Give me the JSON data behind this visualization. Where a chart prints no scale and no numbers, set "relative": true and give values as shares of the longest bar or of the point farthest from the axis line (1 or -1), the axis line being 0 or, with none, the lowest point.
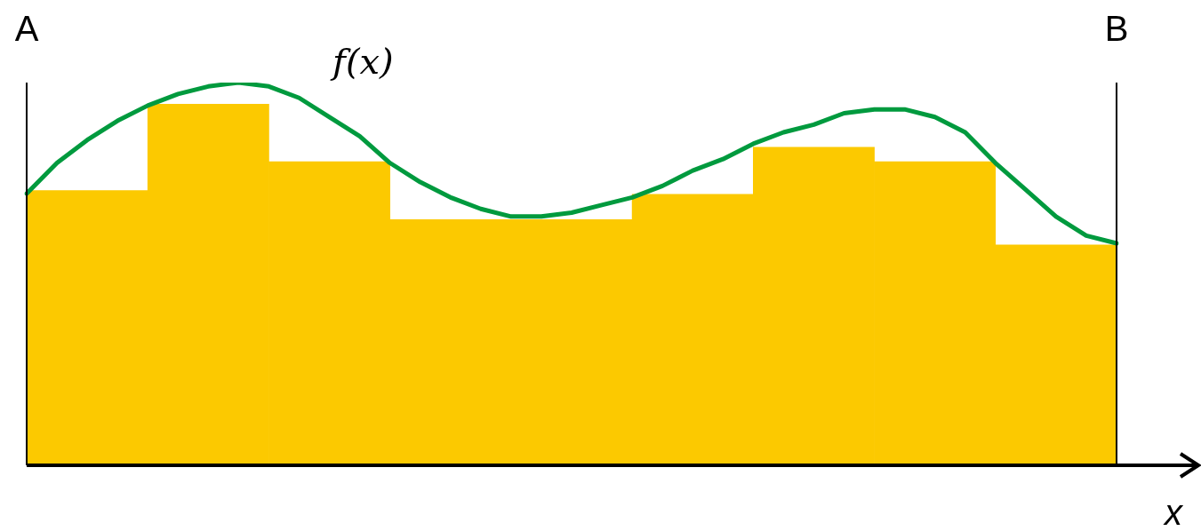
{
  "chart_data": [
    {
      "type": "bar",
      "relative": true,
      "xlabel": "x",
      "categories": [
        null,
        null,
        null,
        null,
        null,
        null,
        null,
        null,
        null
      ],
      "series": [
        {
          "color": "#fcc900",
          "values": [
            0.76,
            1,
            0.84,
            0.68,
            0.68,
            0.75,
            0.88,
            0.84,
            0.61
          ]
        }
      ]
    },
    {
      "type": "line",
      "relative": true,
      "annotations": [
        "A",
        "B"
      ],
      "categories": [
        null,
        null,
        null,
        null,
        null,
        null,
        null,
        null,
        null,
        null,
        null,
        null,
        null,
        null,
        null,
        null,
        null,
        null,
        null,
        null,
        null,
        null,
        null,
        null,
        null,
        null,
        null,
        null,
        null,
        null,
        null,
        null,
        null,
        null,
        null,
        null,
        null
      ],
      "series": [
        {
          "name": "f(x)",
          "color": "#009a3e",
          "values": [
            0.71,
            0.79,
            0.85,
            0.9,
            0.94,
            0.97,
            0.99,
            1,
            0.99,
            0.96,
            0.91,
            0.86,
            0.79,
            0.74,
            0.7,
            0.67,
            0.65,
            0.65,
            0.66,
            0.68,
            0.7,
            0.73,
            0.77,
            0.8,
            0.84,
            0.87,
            0.89,
            0.92,
            0.93,
            0.93,
            0.91,
            0.87,
            0.79,
            0.72,
            0.65,
            0.6,
            0.58
          ]
        }
      ]
    }
  ]
}
